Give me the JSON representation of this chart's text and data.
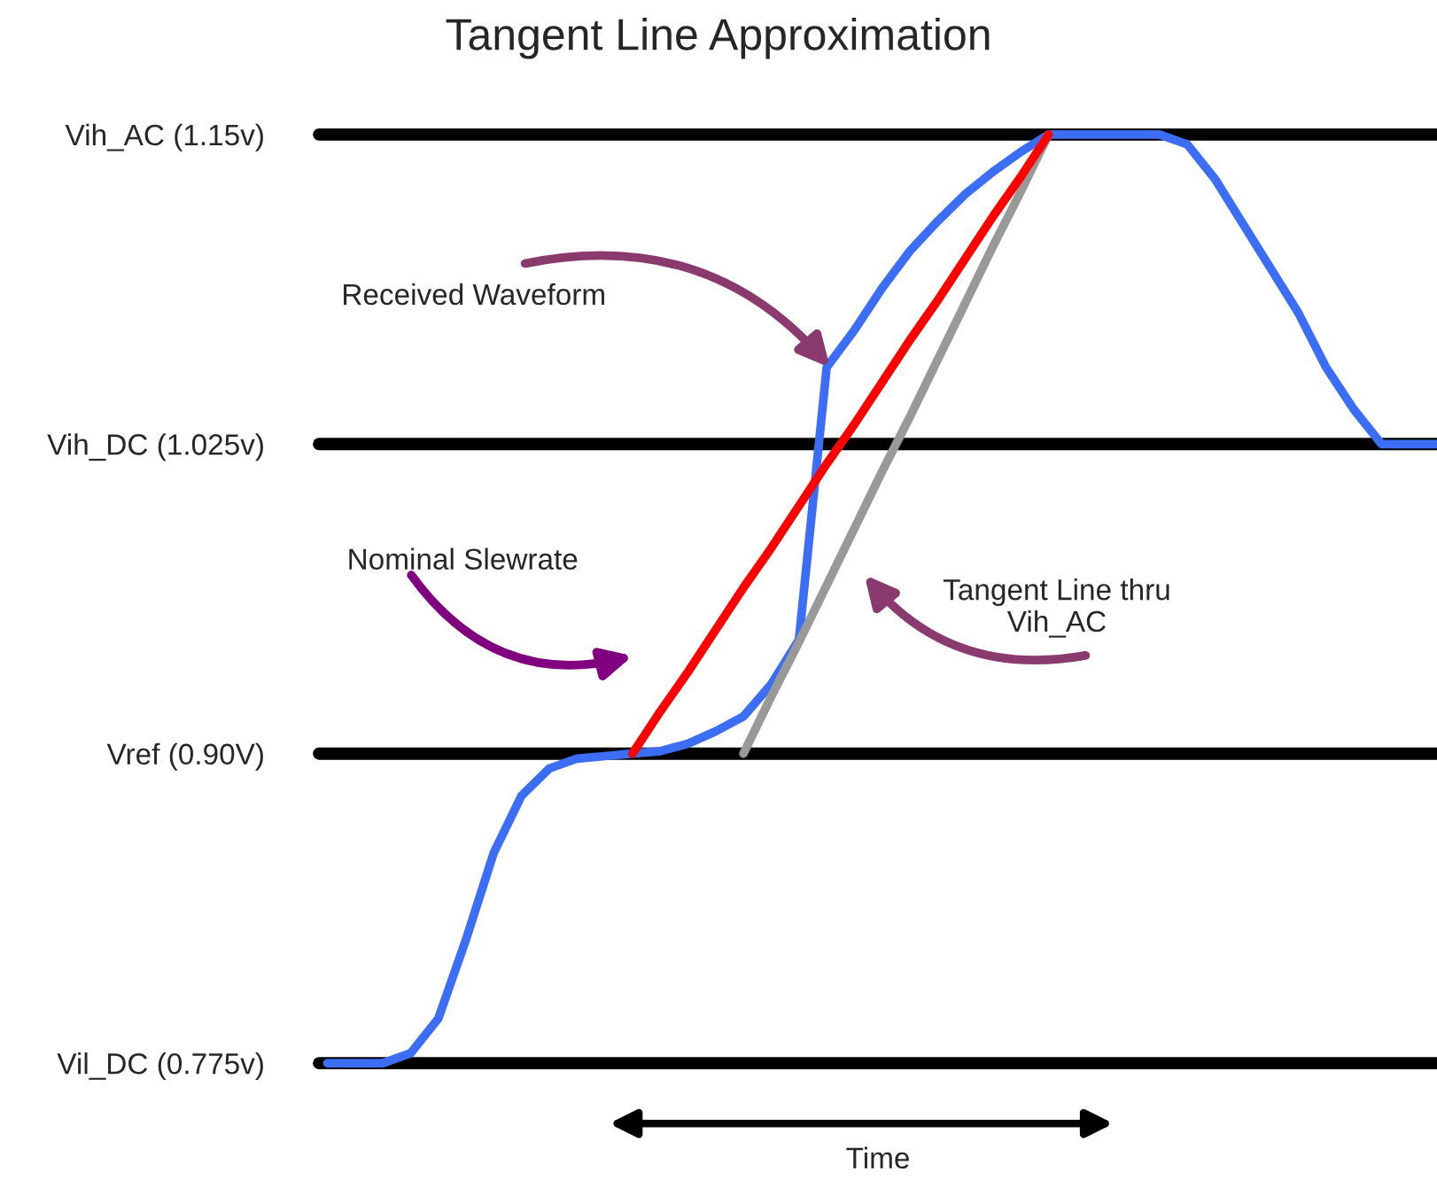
{
  "chart_data": {
    "type": "line",
    "title": "Tangent Line Approximation",
    "xlabel": "Time",
    "categories": [
      null,
      null,
      null,
      null,
      null,
      null,
      null,
      null,
      null,
      null,
      null,
      null,
      null,
      null,
      null,
      null,
      null,
      null,
      null,
      null,
      null,
      null,
      null,
      null,
      null,
      null,
      null,
      null,
      null,
      null,
      null,
      null,
      null,
      null,
      null,
      null,
      null,
      null,
      null,
      null,
      null
    ],
    "series": [
      {
        "color": "#3b6ef5",
        "values": [
          0.775,
          0.775,
          0.775,
          0.779,
          0.793,
          0.825,
          0.86,
          0.883,
          0.894,
          0.898,
          0.899,
          0.9,
          0.901,
          0.904,
          0.909,
          0.915,
          0.928,
          0.946,
          1.056,
          1.071,
          1.088,
          1.103,
          1.115,
          1.126,
          1.135,
          1.143,
          1.15,
          1.15,
          1.15,
          1.15,
          1.15,
          1.146,
          1.132,
          1.114,
          1.096,
          1.078,
          1.056,
          1.039,
          1.025,
          1.025,
          1.025
        ]
      },
      {
        "color": "#999999",
        "values": [
          null,
          null,
          null,
          null,
          null,
          null,
          null,
          null,
          null,
          null,
          null,
          null,
          null,
          null,
          null,
          0.9,
          0.923,
          0.945,
          0.968,
          0.991,
          1.014,
          1.036,
          1.059,
          1.082,
          1.105,
          1.127,
          1.15,
          null,
          null,
          null,
          null,
          null,
          null,
          null,
          null,
          null,
          null,
          null,
          null,
          null,
          null
        ]
      },
      {
        "color": "#ff0000",
        "values": [
          null,
          null,
          null,
          null,
          null,
          null,
          null,
          null,
          null,
          null,
          null,
          0.9,
          0.917,
          0.933,
          0.95,
          0.967,
          0.983,
          1.0,
          1.017,
          1.033,
          1.05,
          1.067,
          1.083,
          1.1,
          1.117,
          1.133,
          1.15,
          null,
          null,
          null,
          null,
          null,
          null,
          null,
          null,
          null,
          null,
          null,
          null,
          null,
          null
        ]
      }
    ],
    "ylim": [
      0.775,
      1.15
    ],
    "yticks": [
      {
        "value": 0.775,
        "label": "Vil_DC (0.775v)"
      },
      {
        "value": 0.9,
        "label": "Vref (0.90V)"
      },
      {
        "value": 1.025,
        "label": "Vih_DC (1.025v)"
      },
      {
        "value": 1.15,
        "label": "Vih_AC (1.15v)"
      }
    ],
    "tick_labels": "y",
    "grid": "y",
    "annotations": [
      "Received Waveform",
      "Nominal Slewrate",
      "Tangent Line thru\nVih_AC"
    ]
  }
}
